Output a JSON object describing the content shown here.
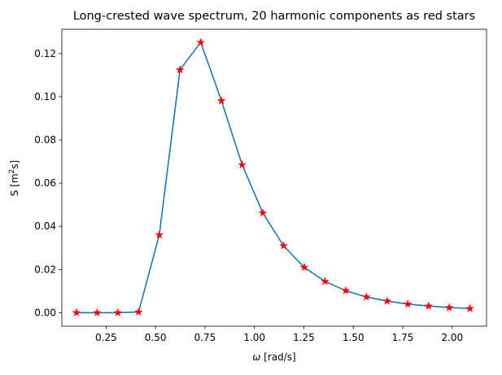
{
  "chart_data": {
    "type": "line",
    "title": "Long-crested wave spectrum, 20 harmonic components as red stars",
    "xlabel": {
      "symbol": "ω",
      "unit": " [rad/s]"
    },
    "ylabel": {
      "base": "S [m",
      "sup": "2",
      "tail": "s]"
    },
    "xlim": [
      0.0262,
      2.1738
    ],
    "ylim": [
      -0.00625,
      0.13125
    ],
    "xticks": [
      0.25,
      0.5,
      0.75,
      1.0,
      1.25,
      1.5,
      1.75,
      2.0
    ],
    "xtick_labels": [
      "0.25",
      "0.50",
      "0.75",
      "1.00",
      "1.25",
      "1.50",
      "1.75",
      "2.00"
    ],
    "yticks": [
      0.0,
      0.02,
      0.04,
      0.06,
      0.08,
      0.1,
      0.12
    ],
    "ytick_labels": [
      "0.00",
      "0.02",
      "0.04",
      "0.06",
      "0.08",
      "0.10",
      "0.12"
    ],
    "grid": false,
    "line_color": "#1f77b4",
    "marker_color": "#ff0000",
    "marker": "star",
    "series": [
      {
        "x": [
          0.1,
          0.2047,
          0.3095,
          0.4142,
          0.5189,
          0.6237,
          0.7284,
          0.8332,
          0.9379,
          1.0426,
          1.1474,
          1.2521,
          1.3568,
          1.4616,
          1.5663,
          1.6711,
          1.7758,
          1.8805,
          1.9853,
          2.09
        ],
        "y": [
          0.0,
          0.0,
          0.0,
          0.0003,
          0.036,
          0.1125,
          0.1252,
          0.0982,
          0.0685,
          0.0462,
          0.031,
          0.021,
          0.0145,
          0.0102,
          0.0073,
          0.0054,
          0.004,
          0.0031,
          0.0024,
          0.0019
        ]
      }
    ]
  }
}
